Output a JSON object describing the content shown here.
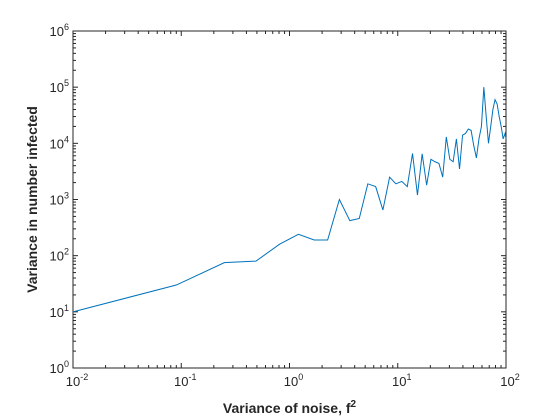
{
  "chart_data": {
    "type": "line",
    "xscale": "log",
    "yscale": "log",
    "xlabel": "Variance of noise, f",
    "xlabel_superscript": "2",
    "ylabel": "Variance in number infected",
    "xlim": [
      0.01,
      100
    ],
    "ylim": [
      1,
      1000000
    ],
    "grid": false,
    "x_ticks": [
      {
        "base": "10",
        "exp": "-2",
        "value": 0.01
      },
      {
        "base": "10",
        "exp": "-1",
        "value": 0.1
      },
      {
        "base": "10",
        "exp": "0",
        "value": 1
      },
      {
        "base": "10",
        "exp": "1",
        "value": 10
      },
      {
        "base": "10",
        "exp": "2",
        "value": 100
      }
    ],
    "y_ticks": [
      {
        "base": "10",
        "exp": "0",
        "value": 1
      },
      {
        "base": "10",
        "exp": "1",
        "value": 10
      },
      {
        "base": "10",
        "exp": "2",
        "value": 100
      },
      {
        "base": "10",
        "exp": "3",
        "value": 1000
      },
      {
        "base": "10",
        "exp": "4",
        "value": 10000
      },
      {
        "base": "10",
        "exp": "5",
        "value": 100000
      },
      {
        "base": "10",
        "exp": "6",
        "value": 1000000
      }
    ],
    "series": [
      {
        "color": "#0072BD",
        "x": [
          0.01,
          0.09,
          0.25,
          0.49,
          0.81,
          1.21,
          1.69,
          2.25,
          2.89,
          3.61,
          4.41,
          5.29,
          6.25,
          7.29,
          8.41,
          9.61,
          10.89,
          12.25,
          13.69,
          15.21,
          16.81,
          18.49,
          20.25,
          22.09,
          24.01,
          26.01,
          28.09,
          30.25,
          32.49,
          34.81,
          37.21,
          39.69,
          42.25,
          44.89,
          47.61,
          50.41,
          53.29,
          56.25,
          59.29,
          62.41,
          65.61,
          68.89,
          72.25,
          75.69,
          79.21,
          82.81,
          86.49,
          90.25,
          94.09,
          98.01,
          100
        ],
        "y": [
          10,
          30,
          75,
          80,
          160,
          240,
          190,
          190,
          1000,
          420,
          460,
          1900,
          1700,
          650,
          2500,
          1900,
          2100,
          1700,
          6600,
          1200,
          6500,
          1800,
          5200,
          4700,
          4400,
          2500,
          13000,
          5200,
          4700,
          12000,
          3500,
          14000,
          15000,
          18000,
          17000,
          9000,
          5500,
          12000,
          20000,
          100000,
          30000,
          10000,
          20000,
          40000,
          60000,
          50000,
          30000,
          20000,
          12000,
          15000,
          12000
        ]
      }
    ]
  }
}
